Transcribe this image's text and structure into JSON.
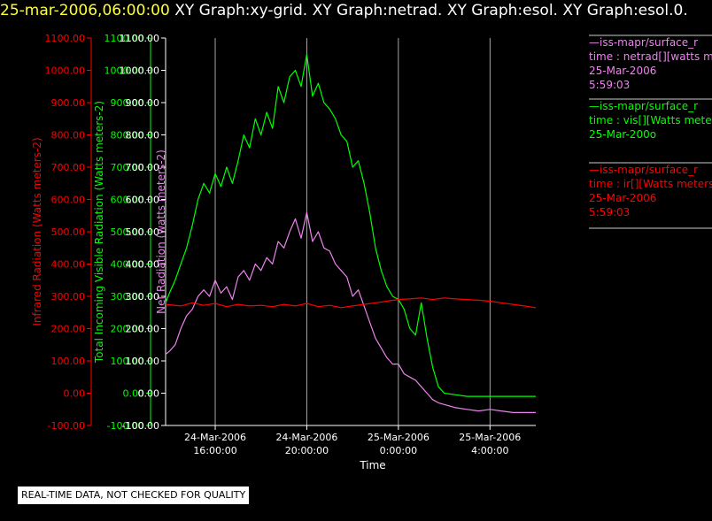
{
  "header": {
    "timestamp": "25-mar-2006,06:00:00",
    "graphs": [
      "XY Graph:xy-grid.",
      "XY Graph:netrad.",
      "XY Graph:esol.",
      "XY Graph:esol.0."
    ]
  },
  "notice": "REAL-TIME DATA, NOT CHECKED FOR QUALITY",
  "colors": {
    "ir": "#ff0000",
    "vis": "#00ff00",
    "netrad": "#ee82ee",
    "axis_white": "#ffffff",
    "grid": "#cccccc"
  },
  "legend": [
    {
      "lines": [
        "—iss-mapr/surface_r",
        "time : netrad[][watts m",
        "25-Mar-2006",
        "5:59:03"
      ],
      "color": "#ee82ee"
    },
    {
      "lines": [
        "—iss-mapr/surface_r",
        "time : vis[][Watts mete",
        "25-Mar-200o"
      ],
      "color": "#00ff00"
    },
    {
      "lines": [
        "—iss-mapr/surface_r",
        "time : ir[][Watts meters",
        "25-Mar-2006",
        "5:59:03"
      ],
      "color": "#ff0000"
    }
  ],
  "chart_data": {
    "type": "line",
    "xlabel": "Time",
    "x_ticks": [
      {
        "t": 16,
        "line1": "24-Mar-2006",
        "line2": "16:00:00"
      },
      {
        "t": 20,
        "line1": "24-Mar-2006",
        "line2": "20:00:00"
      },
      {
        "t": 24,
        "line1": "25-Mar-2006",
        "line2": "0:00:00"
      },
      {
        "t": 28,
        "line1": "25-Mar-2006",
        "line2": "4:00:00"
      }
    ],
    "xlim": [
      "24-Mar-2006 13:50",
      "25-Mar-2006 6:00"
    ],
    "grid": "vertical lines at x ticks",
    "y_ticks": [
      "1100.00",
      "1000.00",
      "900.00",
      "800.00",
      "700.00",
      "600.00",
      "500.00",
      "400.00",
      "300.00",
      "200.00",
      "100.00",
      "0.00",
      "-100.00"
    ],
    "axes": [
      {
        "label": "Infrared Radiation (Watts meters-2)",
        "color": "#ff0000",
        "ylim": [
          -100,
          1100
        ]
      },
      {
        "label": "Total Incoming Visible Radiation (Watts meters-2)",
        "color": "#00ff00",
        "ylim": [
          -100,
          1100
        ]
      },
      {
        "label": "Net Radiation (watts meters-2)",
        "color": "#ee82ee",
        "ylim": [
          -100,
          1100
        ]
      }
    ],
    "series": [
      {
        "key": "vis",
        "color": "#00ff00",
        "x": [
          "13:50",
          "14:00",
          "14:15",
          "14:30",
          "14:45",
          "15:00",
          "15:15",
          "15:30",
          "15:45",
          "16:00",
          "16:15",
          "16:30",
          "16:45",
          "17:00",
          "17:15",
          "17:30",
          "17:45",
          "18:00",
          "18:15",
          "18:30",
          "18:45",
          "19:00",
          "19:15",
          "19:30",
          "19:45",
          "20:00",
          "20:15",
          "20:30",
          "20:45",
          "21:00",
          "21:15",
          "21:30",
          "21:45",
          "22:00",
          "22:15",
          "22:30",
          "22:45",
          "23:00",
          "23:15",
          "23:30",
          "23:45",
          "0:00",
          "0:15",
          "0:30",
          "0:45",
          "1:00",
          "1:15",
          "1:30",
          "1:45",
          "2:00",
          "2:30",
          "3:00",
          "3:30",
          "4:00",
          "4:30",
          "5:00",
          "5:30",
          "6:00"
        ],
        "y": [
          280,
          310,
          350,
          400,
          450,
          520,
          600,
          650,
          620,
          680,
          640,
          700,
          650,
          720,
          800,
          760,
          850,
          800,
          870,
          820,
          950,
          900,
          980,
          1000,
          950,
          1050,
          920,
          960,
          900,
          880,
          850,
          800,
          780,
          700,
          720,
          650,
          560,
          450,
          380,
          330,
          300,
          290,
          260,
          200,
          180,
          280,
          170,
          80,
          20,
          0,
          -5,
          -10,
          -10,
          -10,
          -10,
          -10,
          -10,
          -10
        ]
      },
      {
        "key": "netrad",
        "color": "#ee82ee",
        "x": [
          "13:50",
          "14:00",
          "14:15",
          "14:30",
          "14:45",
          "15:00",
          "15:15",
          "15:30",
          "15:45",
          "16:00",
          "16:15",
          "16:30",
          "16:45",
          "17:00",
          "17:15",
          "17:30",
          "17:45",
          "18:00",
          "18:15",
          "18:30",
          "18:45",
          "19:00",
          "19:15",
          "19:30",
          "19:45",
          "20:00",
          "20:15",
          "20:30",
          "20:45",
          "21:00",
          "21:15",
          "21:30",
          "21:45",
          "22:00",
          "22:15",
          "22:30",
          "22:45",
          "23:00",
          "23:15",
          "23:30",
          "23:45",
          "0:00",
          "0:15",
          "0:30",
          "0:45",
          "1:00",
          "1:15",
          "1:30",
          "1:45",
          "2:00",
          "2:30",
          "3:00",
          "3:30",
          "4:00",
          "4:30",
          "5:00",
          "5:30",
          "6:00"
        ],
        "y": [
          120,
          130,
          150,
          200,
          240,
          260,
          300,
          320,
          300,
          350,
          310,
          330,
          290,
          360,
          380,
          350,
          400,
          380,
          420,
          400,
          470,
          450,
          500,
          540,
          480,
          560,
          470,
          500,
          450,
          440,
          400,
          380,
          360,
          300,
          320,
          270,
          220,
          170,
          140,
          110,
          90,
          90,
          60,
          50,
          40,
          20,
          0,
          -20,
          -30,
          -35,
          -45,
          -50,
          -55,
          -50,
          -55,
          -60,
          -60,
          -60
        ]
      },
      {
        "key": "ir",
        "color": "#ff0000",
        "x": [
          "13:50",
          "14:30",
          "15:00",
          "15:30",
          "16:00",
          "16:30",
          "17:00",
          "17:30",
          "18:00",
          "18:30",
          "19:00",
          "19:30",
          "20:00",
          "20:30",
          "21:00",
          "21:30",
          "22:00",
          "22:30",
          "23:00",
          "23:30",
          "0:00",
          "0:30",
          "1:00",
          "1:30",
          "2:00",
          "2:30",
          "3:00",
          "3:30",
          "4:00",
          "4:30",
          "5:00",
          "5:30",
          "6:00"
        ],
        "y": [
          275,
          270,
          280,
          272,
          278,
          268,
          275,
          270,
          272,
          268,
          275,
          270,
          278,
          268,
          272,
          265,
          270,
          275,
          280,
          285,
          290,
          292,
          295,
          290,
          295,
          292,
          290,
          288,
          285,
          280,
          275,
          270,
          265
        ]
      }
    ]
  }
}
